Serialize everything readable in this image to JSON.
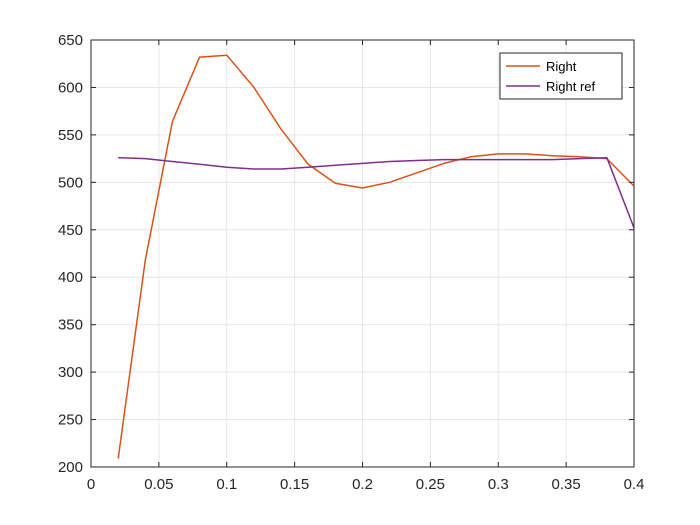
{
  "chart_data": {
    "type": "line",
    "title": "",
    "xlabel": "",
    "ylabel": "",
    "xlim": [
      0,
      0.4
    ],
    "ylim": [
      200,
      650
    ],
    "xticks": [
      "0",
      "0.05",
      "0.1",
      "0.15",
      "0.2",
      "0.25",
      "0.3",
      "0.35",
      "0.4"
    ],
    "yticks": [
      "200",
      "250",
      "300",
      "350",
      "400",
      "450",
      "500",
      "550",
      "600",
      "650"
    ],
    "grid": true,
    "legend_position": "top-right",
    "series": [
      {
        "name": "Right",
        "color": "#D95319",
        "x": [
          0.02,
          0.04,
          0.06,
          0.08,
          0.1,
          0.12,
          0.14,
          0.16,
          0.18,
          0.2,
          0.22,
          0.24,
          0.26,
          0.28,
          0.3,
          0.32,
          0.34,
          0.36,
          0.38,
          0.4
        ],
        "y": [
          209,
          418,
          564,
          632,
          634,
          600,
          556,
          519,
          499,
          494,
          500,
          510,
          520,
          527,
          530,
          530,
          528,
          527,
          525,
          496
        ]
      },
      {
        "name": "Right ref",
        "color": "#7E2F8E",
        "x": [
          0.02,
          0.04,
          0.06,
          0.08,
          0.1,
          0.12,
          0.14,
          0.16,
          0.18,
          0.2,
          0.22,
          0.24,
          0.26,
          0.28,
          0.3,
          0.32,
          0.34,
          0.36,
          0.38,
          0.4
        ],
        "y": [
          526,
          525,
          522,
          519,
          516,
          514,
          514,
          516,
          518,
          520,
          522,
          523,
          524,
          524,
          524,
          524,
          524,
          525,
          526,
          452
        ]
      }
    ]
  }
}
